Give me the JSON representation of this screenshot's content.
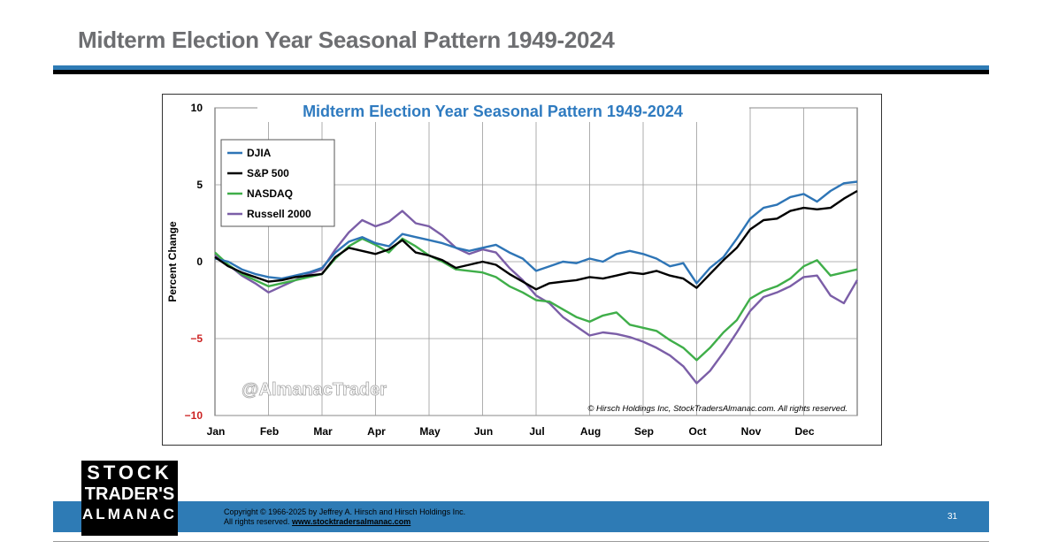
{
  "slide": {
    "title": "Midterm Election Year Seasonal Pattern 1949-2024",
    "footer": {
      "copyright_line1": "Copyright © 1966-2025 by Jeffrey A. Hirsch and Hirsch Holdings Inc.",
      "copyright_line2": "All rights reserved.",
      "website": "www.stocktradersalmanac.com",
      "page_number": "31"
    },
    "logo": {
      "line1": "STOCK",
      "line2": "TRADER'S",
      "line3": "ALMANAC"
    }
  },
  "colors": {
    "title_gray": "#6d6e71",
    "band_blue": "#2e7bb5",
    "chart_title_blue": "#2f7bc0",
    "negative_tick": "#cc2222",
    "djia": "#2e75b6",
    "sp500": "#000000",
    "nasdaq": "#3fae49",
    "russell": "#7b5ea7"
  },
  "chart_data": {
    "type": "line",
    "title": "Midterm Election Year Seasonal Pattern 1949-2024",
    "xlabel": "",
    "ylabel": "Percent Change",
    "ylim": [
      -10,
      10
    ],
    "yticks": [
      10,
      5,
      0,
      -5,
      -10
    ],
    "ytick_labels": [
      "10",
      "5",
      "0",
      "−5",
      "−10"
    ],
    "months": [
      "Jan",
      "Feb",
      "Mar",
      "Apr",
      "May",
      "Jun",
      "Jul",
      "Aug",
      "Sep",
      "Oct",
      "Nov",
      "Dec"
    ],
    "grid": true,
    "legend_position": "top-left",
    "watermark": "@AlmanacTrader",
    "source_note": "© Hirsch Holdings Inc, StockTradersAlmanac.com. All rights reserved.",
    "x": [
      0,
      0.25,
      0.5,
      0.75,
      1,
      1.25,
      1.5,
      1.75,
      2,
      2.25,
      2.5,
      2.75,
      3,
      3.25,
      3.5,
      3.75,
      4,
      4.25,
      4.5,
      4.75,
      5,
      5.25,
      5.5,
      5.75,
      6,
      6.25,
      6.5,
      6.75,
      7,
      7.25,
      7.5,
      7.75,
      8,
      8.25,
      8.5,
      8.75,
      9,
      9.25,
      9.5,
      9.75,
      10,
      10.25,
      10.5,
      10.75,
      11,
      11.25,
      11.5,
      11.75,
      12
    ],
    "series": [
      {
        "name": "DJIA",
        "color": "#2e75b6",
        "values": [
          0.2,
          0.0,
          -0.5,
          -0.8,
          -1.0,
          -1.1,
          -0.9,
          -0.7,
          -0.4,
          0.6,
          1.3,
          1.6,
          1.2,
          1.0,
          1.8,
          1.6,
          1.4,
          1.2,
          0.9,
          0.7,
          0.9,
          1.1,
          0.6,
          0.2,
          -0.6,
          -0.3,
          0.0,
          -0.1,
          0.2,
          0.0,
          0.5,
          0.7,
          0.5,
          0.2,
          -0.3,
          -0.1,
          -1.4,
          -0.4,
          0.3,
          1.5,
          2.8,
          3.5,
          3.7,
          4.2,
          4.4,
          3.9,
          4.6,
          5.1,
          5.2
        ]
      },
      {
        "name": "S&P 500",
        "color": "#000000",
        "values": [
          0.3,
          -0.3,
          -0.7,
          -1.0,
          -1.3,
          -1.2,
          -1.0,
          -0.9,
          -0.8,
          0.3,
          0.9,
          0.7,
          0.5,
          0.8,
          1.4,
          0.6,
          0.4,
          0.1,
          -0.4,
          -0.2,
          0.0,
          -0.2,
          -0.8,
          -1.3,
          -1.8,
          -1.4,
          -1.3,
          -1.2,
          -1.0,
          -1.1,
          -0.9,
          -0.7,
          -0.8,
          -0.6,
          -0.9,
          -1.1,
          -1.7,
          -0.8,
          0.1,
          0.9,
          2.1,
          2.7,
          2.8,
          3.3,
          3.5,
          3.4,
          3.5,
          4.1,
          4.6
        ]
      },
      {
        "name": "NASDAQ",
        "color": "#3fae49",
        "values": [
          0.6,
          -0.2,
          -0.8,
          -1.2,
          -1.6,
          -1.4,
          -1.2,
          -1.0,
          -0.8,
          0.2,
          1.0,
          1.5,
          1.1,
          0.6,
          1.5,
          1.0,
          0.4,
          0.0,
          -0.5,
          -0.6,
          -0.7,
          -1.0,
          -1.6,
          -2.0,
          -2.5,
          -2.6,
          -3.1,
          -3.6,
          -3.9,
          -3.5,
          -3.3,
          -4.1,
          -4.3,
          -4.5,
          -5.1,
          -5.6,
          -6.4,
          -5.6,
          -4.6,
          -3.8,
          -2.4,
          -1.9,
          -1.6,
          -1.1,
          -0.3,
          0.1,
          -0.9,
          -0.7,
          -0.5
        ]
      },
      {
        "name": "Russell 2000",
        "color": "#7b5ea7",
        "values": [
          0.4,
          -0.2,
          -0.9,
          -1.4,
          -2.0,
          -1.6,
          -1.2,
          -0.8,
          -0.5,
          0.8,
          1.9,
          2.7,
          2.3,
          2.6,
          3.3,
          2.5,
          2.3,
          1.7,
          0.9,
          0.5,
          0.8,
          0.6,
          -0.4,
          -1.2,
          -2.2,
          -2.7,
          -3.6,
          -4.2,
          -4.8,
          -4.6,
          -4.7,
          -4.9,
          -5.2,
          -5.6,
          -6.1,
          -6.8,
          -7.9,
          -7.1,
          -5.9,
          -4.6,
          -3.2,
          -2.3,
          -2.0,
          -1.6,
          -1.0,
          -0.9,
          -2.2,
          -2.7,
          -1.2
        ]
      }
    ]
  }
}
